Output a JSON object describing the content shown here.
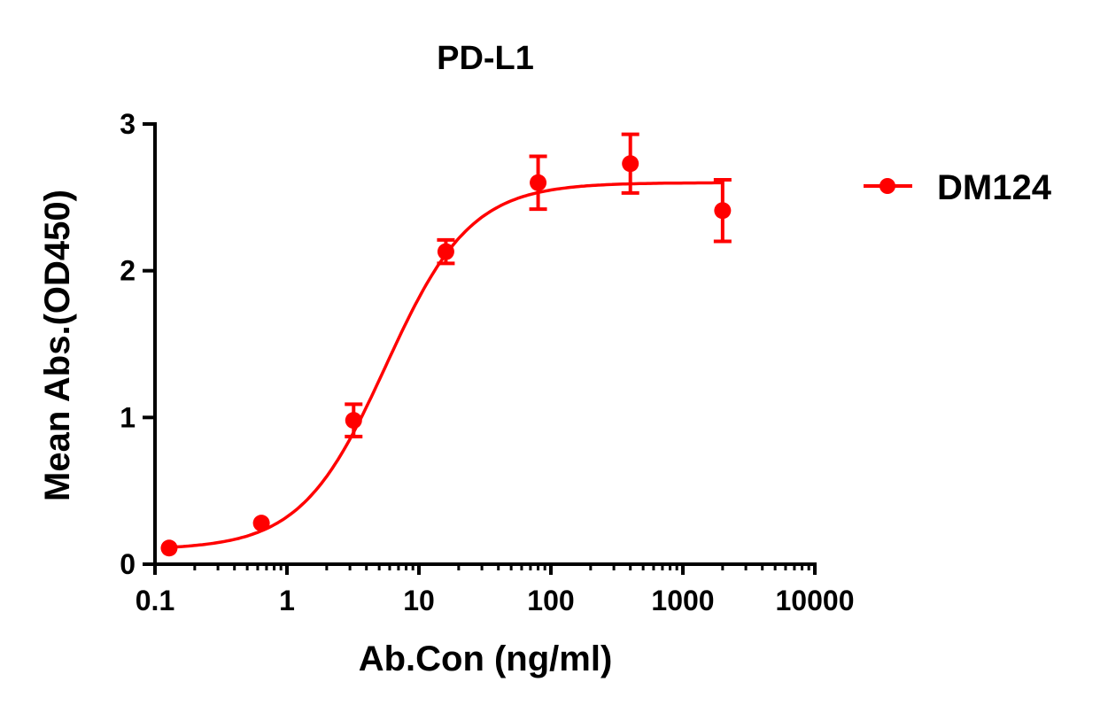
{
  "chart_data": {
    "type": "scatter",
    "title": "PD-L1",
    "xlabel": "Ab.Con (ng/ml)",
    "ylabel": "Mean Abs.(OD450)",
    "x_scale": "log",
    "xlim": [
      0.1,
      10000
    ],
    "ylim": [
      0,
      3
    ],
    "x_ticks": [
      "0.1",
      "1",
      "10",
      "100",
      "1000",
      "10000"
    ],
    "x_tick_values": [
      0.1,
      1,
      10,
      100,
      1000,
      10000
    ],
    "y_ticks": [
      "0",
      "1",
      "2",
      "3"
    ],
    "y_tick_values": [
      0,
      1,
      2,
      3
    ],
    "grid": false,
    "legend_position": "right",
    "series": [
      {
        "name": "DM124",
        "color": "#ff0000",
        "x": [
          0.128,
          0.64,
          3.2,
          16,
          80,
          400,
          2000
        ],
        "y": [
          0.11,
          0.28,
          0.98,
          2.13,
          2.6,
          2.73,
          2.41
        ],
        "error": [
          0.02,
          0.02,
          0.11,
          0.08,
          0.18,
          0.2,
          0.21
        ],
        "fit": {
          "model": "4PL",
          "bottom": 0.1,
          "top": 2.6,
          "ec50": 5.6,
          "hill": 1.35
        }
      }
    ]
  }
}
